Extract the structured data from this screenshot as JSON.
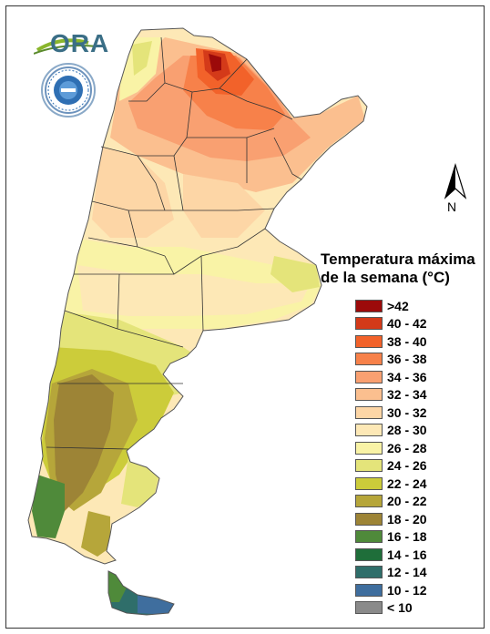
{
  "branding": {
    "ora_text": "ORA",
    "logo_icon": "ora-logo-icon",
    "seal_icon": "weather-service-seal-icon"
  },
  "compass": {
    "letter": "N",
    "icon": "north-arrow-icon"
  },
  "legend": {
    "title_line1": "Temperatura máxima",
    "title_line2": "de la semana (°C)",
    "items": [
      {
        "label": ">42",
        "color": "#9c0a0a"
      },
      {
        "label": "40 - 42",
        "color": "#d43a19"
      },
      {
        "label": "38 - 40",
        "color": "#f2622a"
      },
      {
        "label": "36 - 38",
        "color": "#f7814a"
      },
      {
        "label": "34 - 36",
        "color": "#f9a071"
      },
      {
        "label": "32 - 34",
        "color": "#fbbf8f"
      },
      {
        "label": "30 - 32",
        "color": "#fdd6a6"
      },
      {
        "label": "28 - 30",
        "color": "#fde8b6"
      },
      {
        "label": "26 - 28",
        "color": "#f9f3a6"
      },
      {
        "label": "24 - 26",
        "color": "#e4e47a"
      },
      {
        "label": "22 - 24",
        "color": "#cccc3a"
      },
      {
        "label": "20 - 22",
        "color": "#b6a63a"
      },
      {
        "label": "18 - 20",
        "color": "#9d8436"
      },
      {
        "label": "16 - 18",
        "color": "#4f8a3a"
      },
      {
        "label": "14 - 16",
        "color": "#1f6e3a"
      },
      {
        "label": "12 - 14",
        "color": "#2f6e6a"
      },
      {
        "label": "10 - 12",
        "color": "#3f6e9e"
      },
      {
        "label": "< 10",
        "color": "#8a8a8a"
      }
    ]
  }
}
